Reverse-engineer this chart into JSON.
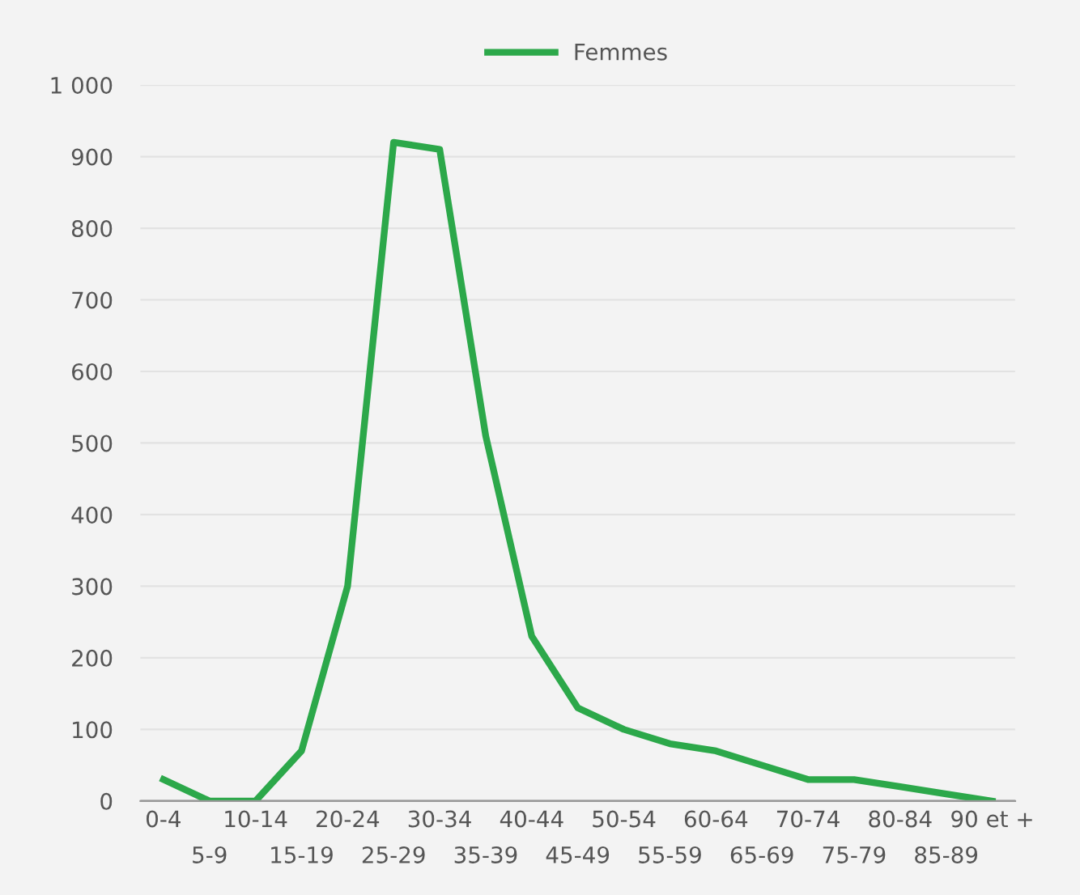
{
  "chart_data": {
    "type": "line",
    "categories": [
      "0-4",
      "5-9",
      "10-14",
      "15-19",
      "20-24",
      "25-29",
      "30-34",
      "35-39",
      "40-44",
      "45-49",
      "50-54",
      "55-59",
      "60-64",
      "65-69",
      "70-74",
      "75-79",
      "80-84",
      "85-89",
      "90 et +"
    ],
    "series": [
      {
        "name": "Femmes",
        "color": "#2ca84a",
        "values": [
          30,
          0,
          0,
          70,
          300,
          920,
          910,
          510,
          230,
          130,
          100,
          80,
          70,
          50,
          30,
          30,
          20,
          10,
          0
        ]
      }
    ],
    "ylim": [
      0,
      1000
    ],
    "yticks": [
      0,
      100,
      200,
      300,
      400,
      500,
      600,
      700,
      800,
      900,
      {
        "value": 1000,
        "label": "1 000"
      }
    ],
    "grid": "y",
    "legend": "top",
    "marker": "none",
    "line_style": "solid"
  }
}
